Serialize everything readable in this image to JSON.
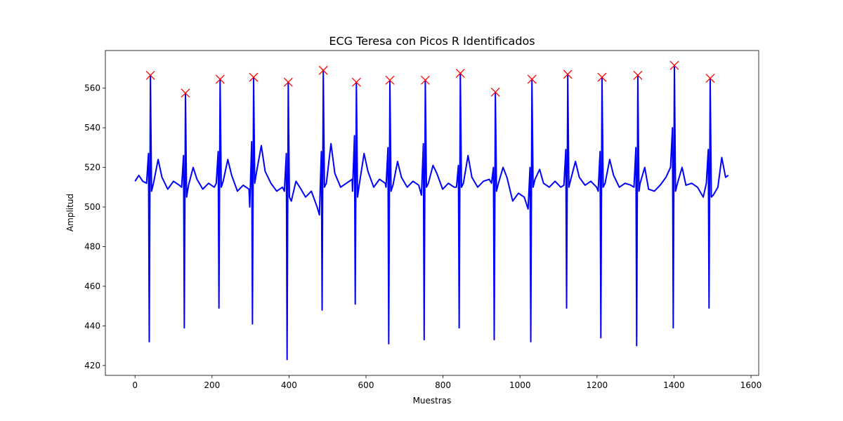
{
  "chart_data": {
    "type": "line",
    "title": "ECG Teresa con Picos R Identificados",
    "xlabel": "Muestras",
    "ylabel": "Amplitud",
    "xlim": [
      -77,
      1620
    ],
    "ylim": [
      415,
      579
    ],
    "xticks": [
      0,
      200,
      400,
      600,
      800,
      1000,
      1200,
      1400,
      1600
    ],
    "yticks": [
      420,
      440,
      460,
      480,
      500,
      520,
      540,
      560
    ],
    "grid": false,
    "series": [
      {
        "color": "#0000ff",
        "style": "line",
        "x": [
          0,
          10,
          20,
          30,
          35,
          37,
          40,
          43,
          48,
          60,
          70,
          85,
          100,
          115,
          121,
          126,
          128,
          131,
          134,
          139,
          151,
          161,
          176,
          191,
          206,
          211,
          216,
          218,
          221,
          224,
          229,
          241,
          251,
          266,
          281,
          296,
          298,
          303,
          305,
          308,
          311,
          316,
          328,
          338,
          353,
          368,
          383,
          388,
          393,
          395,
          398,
          401,
          406,
          418,
          428,
          443,
          458,
          473,
          479,
          484,
          486,
          489,
          492,
          497,
          509,
          519,
          534,
          549,
          564,
          565,
          570,
          572,
          575,
          578,
          583,
          595,
          605,
          620,
          635,
          650,
          652,
          657,
          659,
          662,
          665,
          670,
          682,
          692,
          707,
          722,
          737,
          744,
          749,
          751,
          754,
          757,
          762,
          774,
          784,
          799,
          814,
          829,
          835,
          840,
          842,
          845,
          848,
          853,
          865,
          875,
          890,
          905,
          920,
          926,
          931,
          933,
          936,
          939,
          944,
          956,
          966,
          981,
          996,
          1011,
          1021,
          1026,
          1028,
          1031,
          1034,
          1039,
          1051,
          1061,
          1076,
          1091,
          1106,
          1114,
          1119,
          1121,
          1124,
          1127,
          1132,
          1144,
          1154,
          1169,
          1184,
          1199,
          1203,
          1208,
          1210,
          1213,
          1216,
          1221,
          1233,
          1243,
          1258,
          1273,
          1288,
          1296,
          1301,
          1303,
          1306,
          1309,
          1312,
          1324,
          1334,
          1349,
          1364,
          1379,
          1391,
          1396,
          1398,
          1401,
          1404,
          1409,
          1421,
          1431,
          1446,
          1461,
          1476,
          1484,
          1489,
          1491,
          1494,
          1497,
          1502,
          1514,
          1524,
          1534,
          1541
        ],
        "values": [
          513,
          516,
          513,
          512,
          527,
          432,
          566.5,
          508,
          512,
          524,
          515,
          509,
          513,
          511,
          510,
          526,
          439,
          557.5,
          505,
          511,
          520,
          514,
          509,
          512,
          510,
          512,
          528,
          449,
          564.5,
          510,
          513,
          524,
          516,
          508,
          511,
          509,
          500,
          533,
          441,
          565.5,
          512,
          518,
          531,
          518,
          512,
          508,
          510,
          508,
          527,
          423,
          563,
          505,
          503,
          513,
          510,
          505,
          508,
          500,
          496,
          528,
          448,
          569,
          510,
          512,
          532,
          517,
          510,
          512,
          514,
          508,
          536,
          451,
          563,
          505,
          512,
          527,
          518,
          510,
          514,
          512,
          510,
          530,
          431,
          564,
          508,
          511,
          523,
          515,
          510,
          513,
          511,
          506,
          532,
          433,
          564,
          510,
          512,
          521,
          517,
          509,
          512,
          510,
          510,
          521,
          439,
          567.5,
          510,
          512,
          526,
          515,
          510,
          513,
          514,
          512,
          520,
          433,
          558,
          508,
          512,
          520,
          515,
          503,
          507,
          505,
          499,
          520,
          432,
          564.5,
          510,
          514,
          519,
          512,
          510,
          513,
          510,
          511,
          529,
          449,
          567,
          510,
          514,
          523,
          515,
          511,
          513,
          510,
          508,
          528,
          434,
          565.5,
          510,
          512,
          524,
          516,
          510,
          512,
          511,
          510,
          530,
          430,
          566.5,
          508,
          512,
          520,
          509,
          508,
          511,
          515,
          520,
          540,
          439,
          571.5,
          508,
          512,
          520,
          511,
          512,
          510,
          505,
          512,
          529,
          449,
          565,
          505,
          506,
          510,
          525,
          515,
          516
        ]
      },
      {
        "color": "#ff0000",
        "style": "marker",
        "marker": "x",
        "x": [
          40,
          131,
          221,
          308,
          398,
          489,
          575,
          662,
          754,
          845,
          936,
          1031,
          1124,
          1213,
          1306,
          1401,
          1494
        ],
        "values": [
          566.5,
          557.5,
          564.5,
          565.5,
          563,
          569,
          563,
          564,
          564,
          567.5,
          558,
          564.5,
          567,
          565.5,
          566.5,
          571.5,
          565
        ]
      }
    ]
  }
}
